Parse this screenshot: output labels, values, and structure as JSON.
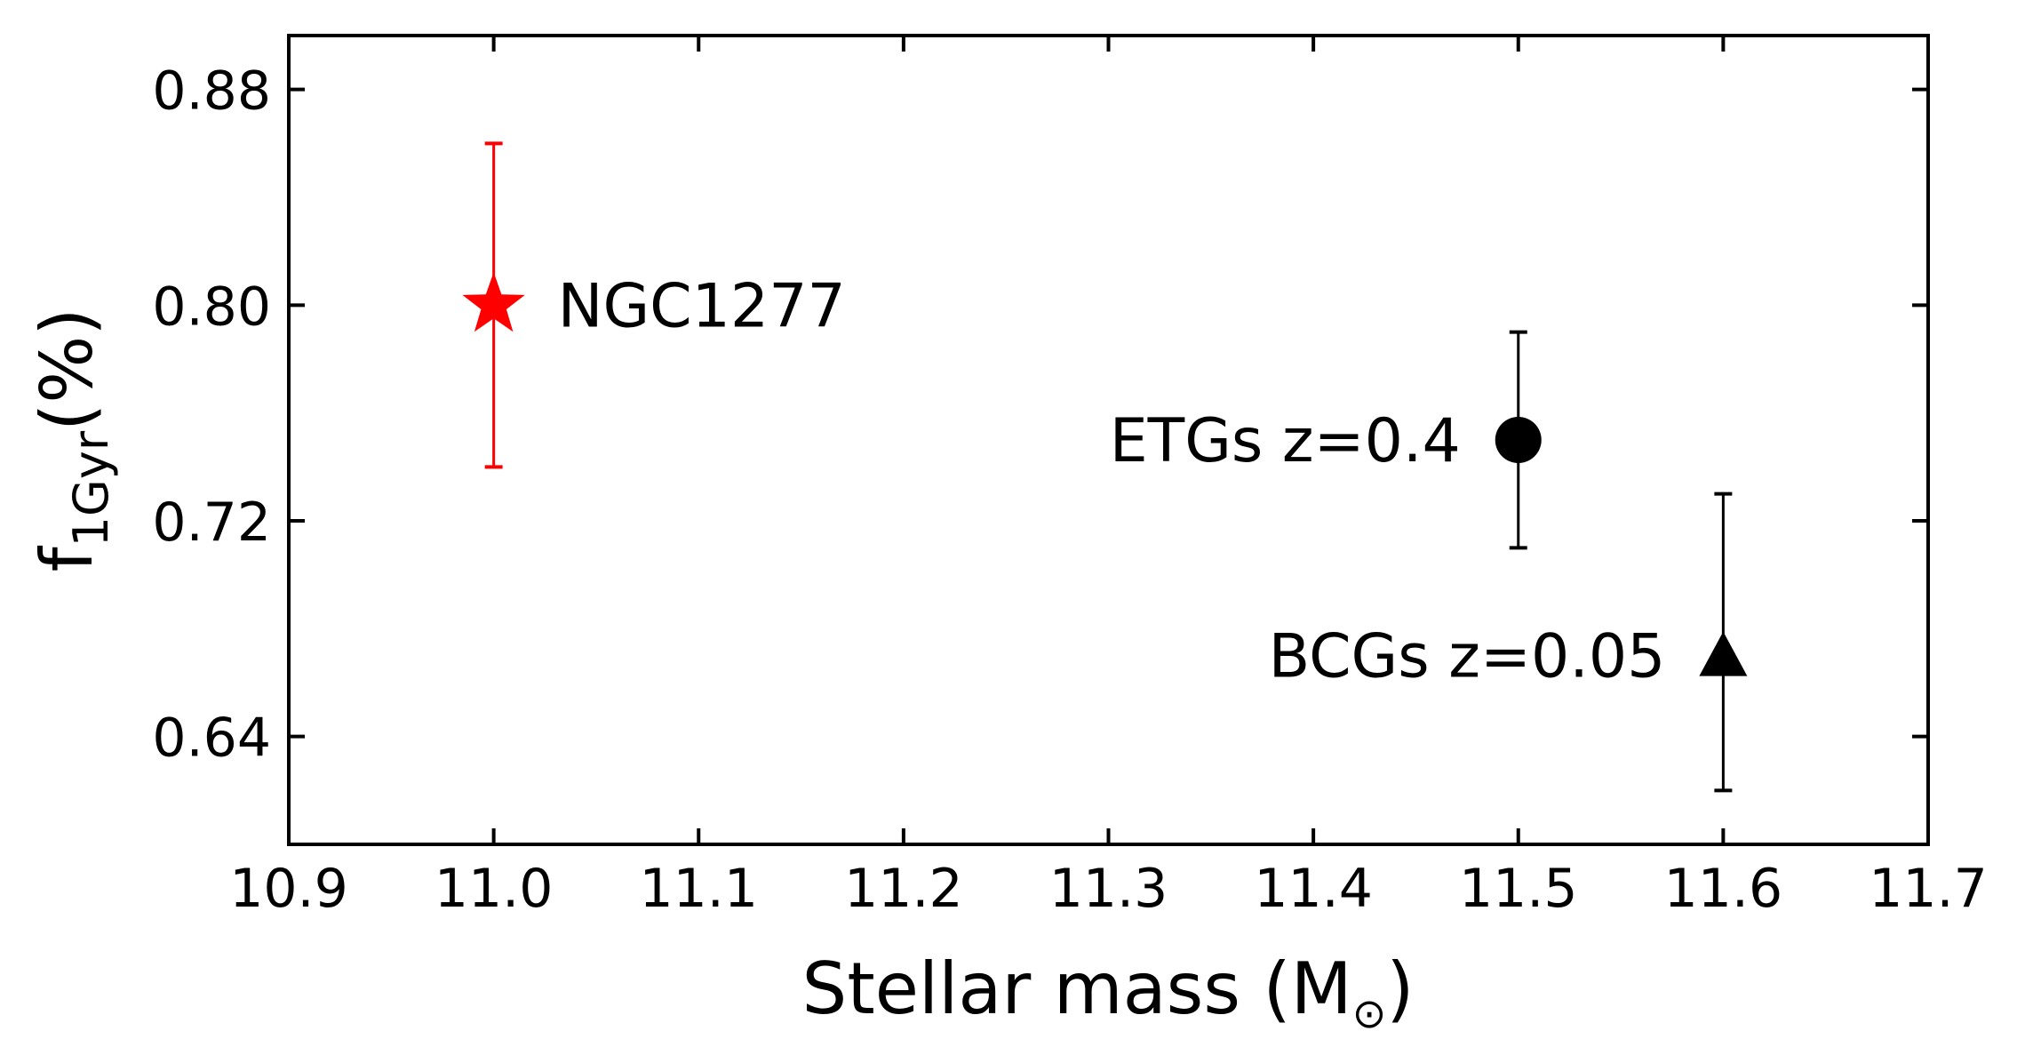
{
  "chart_data": {
    "type": "scatter",
    "xlabel": {
      "text": "Stellar mass (M",
      "sub": "⊙",
      "close": ")"
    },
    "ylabel": {
      "main": "f",
      "sub": "1Gyr",
      "rest": "(%)"
    },
    "xlim": [
      10.9,
      11.7
    ],
    "ylim": [
      0.6,
      0.9
    ],
    "xticks": [
      10.9,
      11.0,
      11.1,
      11.2,
      11.3,
      11.4,
      11.5,
      11.6,
      11.7
    ],
    "xtick_labels": [
      "10.9",
      "11.0",
      "11.1",
      "11.2",
      "11.3",
      "11.4",
      "11.5",
      "11.6",
      "11.7"
    ],
    "yticks": [
      0.64,
      0.72,
      0.8,
      0.88
    ],
    "ytick_labels": [
      "0.64",
      "0.72",
      "0.80",
      "0.88"
    ],
    "grid": false,
    "points": [
      {
        "label": "NGC1277",
        "x": 11.0,
        "y": 0.8,
        "yerr_low": 0.74,
        "yerr_high": 0.86,
        "marker": "star",
        "color": "#ff0000",
        "label_side": "right"
      },
      {
        "label": "ETGs z=0.4",
        "x": 11.5,
        "y": 0.75,
        "yerr_low": 0.71,
        "yerr_high": 0.79,
        "marker": "circle",
        "color": "#000000",
        "label_side": "left"
      },
      {
        "label": "BCGs z=0.05",
        "x": 11.6,
        "y": 0.67,
        "yerr_low": 0.62,
        "yerr_high": 0.73,
        "marker": "triangle",
        "color": "#000000",
        "label_side": "left"
      }
    ]
  }
}
